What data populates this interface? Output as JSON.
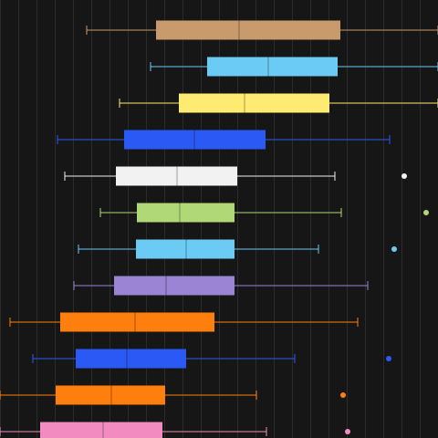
{
  "chart_data": {
    "type": "box",
    "orientation": "horizontal",
    "background": "#161616",
    "grid": true,
    "grid_color": "#2a2a2a",
    "xlim": [
      0,
      480
    ],
    "series": [
      {
        "color": "#c89a6c",
        "whisker_low": 95,
        "q1": 171,
        "median": 262,
        "q3": 373,
        "whisker_high": 480,
        "outliers": []
      },
      {
        "color": "#6ccbf4",
        "whisker_low": 165,
        "q1": 227,
        "median": 294,
        "q3": 370,
        "whisker_high": 480,
        "outliers": []
      },
      {
        "color": "#fdeb72",
        "whisker_low": 131,
        "q1": 196,
        "median": 268,
        "q3": 361,
        "whisker_high": 480,
        "outliers": []
      },
      {
        "color": "#2b59f6",
        "whisker_low": 63,
        "q1": 136,
        "median": 213,
        "q3": 291,
        "whisker_high": 427,
        "outliers": []
      },
      {
        "color": "#f2f2f2",
        "whisker_low": 71,
        "q1": 127,
        "median": 194,
        "q3": 260,
        "whisker_high": 367,
        "outliers": [
          443
        ]
      },
      {
        "color": "#b1d877",
        "whisker_low": 110,
        "q1": 150,
        "median": 197,
        "q3": 257,
        "whisker_high": 374,
        "outliers": [
          467
        ]
      },
      {
        "color": "#6ccbf4",
        "whisker_low": 86,
        "q1": 149,
        "median": 204,
        "q3": 257,
        "whisker_high": 349,
        "outliers": [
          432
        ]
      },
      {
        "color": "#9a84d3",
        "whisker_low": 81,
        "q1": 125,
        "median": 182,
        "q3": 257,
        "whisker_high": 403,
        "outliers": []
      },
      {
        "color": "#ff7f0e",
        "whisker_low": 11,
        "q1": 66,
        "median": 148,
        "q3": 235,
        "whisker_high": 392,
        "outliers": []
      },
      {
        "color": "#2b59f6",
        "whisker_low": 36,
        "q1": 83,
        "median": 139,
        "q3": 204,
        "whisker_high": 323,
        "outliers": [
          426
        ]
      },
      {
        "color": "#ff7f0e",
        "whisker_low": 0,
        "q1": 61,
        "median": 122,
        "q3": 181,
        "whisker_high": 281,
        "outliers": [
          376
        ]
      },
      {
        "color": "#f28cc0",
        "whisker_low": 0,
        "q1": 44,
        "median": 113,
        "q3": 178,
        "whisker_high": 292,
        "outliers": [
          381
        ]
      }
    ]
  }
}
